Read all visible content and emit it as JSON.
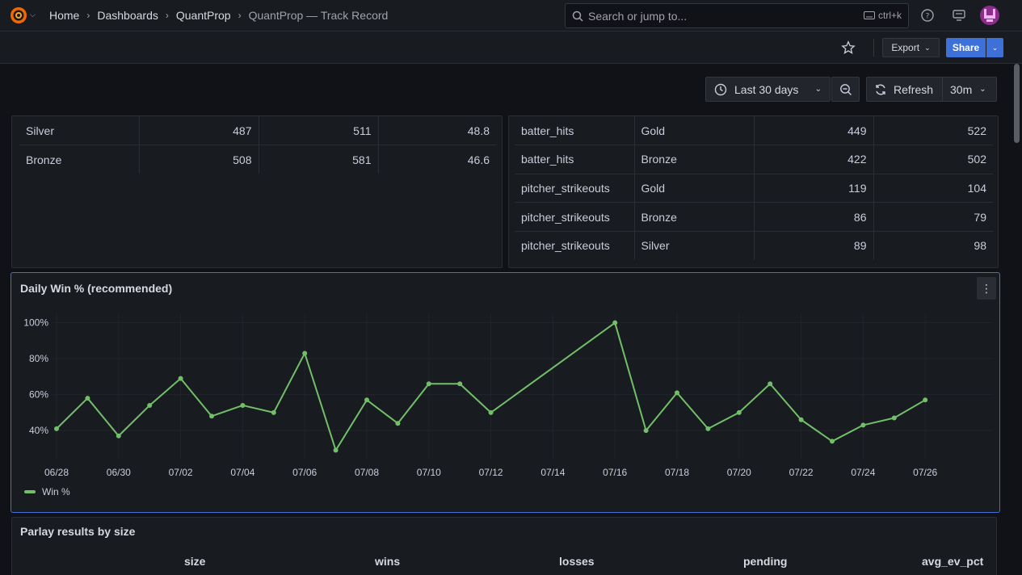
{
  "topbar": {
    "breadcrumbs": [
      "Home",
      "Dashboards",
      "QuantProp",
      "QuantProp — Track Record"
    ],
    "search_placeholder": "Search or jump to...",
    "search_shortcut": "ctrl+k",
    "icons": [
      "grafana-logo-icon",
      "help-icon",
      "news-icon",
      "user-avatar"
    ]
  },
  "toolbar": {
    "export_label": "Export",
    "share_label": "Share"
  },
  "controls": {
    "time_range": "Last 30 days",
    "refresh_label": "Refresh",
    "refresh_interval": "30m"
  },
  "left_table": {
    "rows": [
      [
        "Silver",
        "487",
        "511",
        "48.8"
      ],
      [
        "Bronze",
        "508",
        "581",
        "46.6"
      ]
    ]
  },
  "right_table": {
    "rows": [
      [
        "batter_hits",
        "Gold",
        "449",
        "522"
      ],
      [
        "batter_hits",
        "Bronze",
        "422",
        "502"
      ],
      [
        "pitcher_strikeouts",
        "Gold",
        "119",
        "104"
      ],
      [
        "pitcher_strikeouts",
        "Bronze",
        "86",
        "79"
      ],
      [
        "pitcher_strikeouts",
        "Silver",
        "89",
        "98"
      ]
    ]
  },
  "daily_panel": {
    "title": "Daily Win % (recommended)",
    "legend": "Win %"
  },
  "chart_data": {
    "type": "line",
    "title": "Daily Win % (recommended)",
    "xlabel": "",
    "ylabel": "",
    "ylim": [
      27,
      103
    ],
    "yticks": [
      "40%",
      "60%",
      "80%",
      "100%"
    ],
    "ytick_values": [
      40,
      60,
      80,
      100
    ],
    "xticks": [
      "06/28",
      "06/30",
      "07/02",
      "07/04",
      "07/06",
      "07/08",
      "07/10",
      "07/12",
      "07/14",
      "07/16",
      "07/18",
      "07/20",
      "07/22",
      "07/24",
      "07/26"
    ],
    "x": [
      "06/28",
      "06/29",
      "06/30",
      "07/01",
      "07/02",
      "07/03",
      "07/04",
      "07/05",
      "07/06",
      "07/07",
      "07/08",
      "07/09",
      "07/10",
      "07/11",
      "07/12",
      "07/16",
      "07/17",
      "07/18",
      "07/19",
      "07/20",
      "07/21",
      "07/22",
      "07/23",
      "07/24",
      "07/25",
      "07/26"
    ],
    "series": [
      {
        "name": "Win %",
        "color": "#73bf69",
        "values": [
          41,
          58,
          37,
          54,
          69,
          48,
          54,
          50,
          83,
          29,
          57,
          44,
          66,
          66,
          50,
          100,
          40,
          61,
          41,
          50,
          66,
          46,
          34,
          43,
          47,
          57
        ]
      }
    ],
    "grid": true,
    "legend": "bottom-left"
  },
  "parlay_panel": {
    "title": "Parlay results by size",
    "columns": [
      "size",
      "wins",
      "losses",
      "pending",
      "avg_ev_pct"
    ]
  }
}
